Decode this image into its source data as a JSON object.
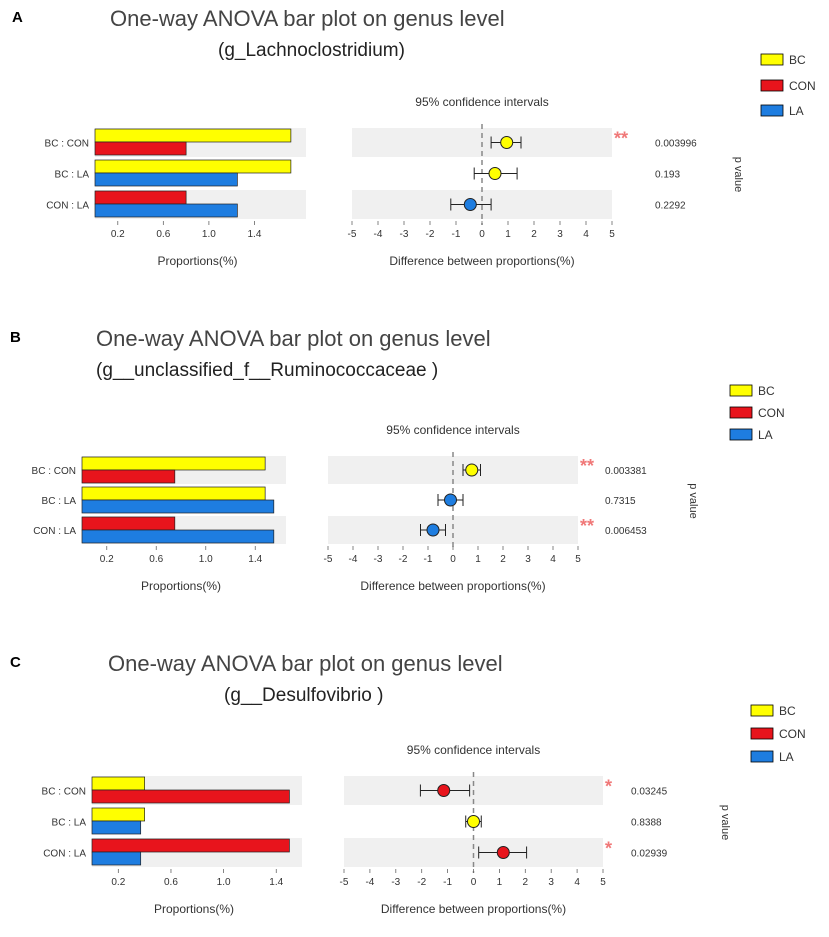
{
  "colors": {
    "BC": "#ffff00",
    "CON": "#e8141c",
    "LA": "#1e7de0",
    "stripe": "#f0f0f0",
    "sig": "#f07878"
  },
  "chart_data": [
    {
      "type": "bar",
      "panel": "A",
      "title": "One-way ANOVA bar plot on genus level",
      "subtitle": "(g_Lachnoclostridium)",
      "legend": [
        "BC",
        "CON",
        "LA"
      ],
      "rows": [
        "BC : CON",
        "BC : LA",
        "CON : LA"
      ],
      "row_groups": [
        [
          "BC",
          "CON"
        ],
        [
          "BC",
          "LA"
        ],
        [
          "CON",
          "LA"
        ]
      ],
      "proportions": {
        "BC": 1.72,
        "CON": 0.8,
        "LA": 1.25
      },
      "bar_xlim": [
        0,
        1.8
      ],
      "bar_ticks": [
        "0.2",
        "0.6",
        "1.0",
        "1.4"
      ],
      "bar_xlabel": "Proportions(%)",
      "ci_title": "95% confidence intervals",
      "ci_xlim": [
        -5,
        5
      ],
      "ci_ticks": [
        "-5",
        "-4",
        "-3",
        "-2",
        "-1",
        "0",
        "1",
        "2",
        "3",
        "4",
        "5"
      ],
      "ci_xlabel": "Difference between proportions(%)",
      "differences": [
        0.95,
        0.5,
        -0.45
      ],
      "ci_lower": [
        0.35,
        -0.3,
        -1.2
      ],
      "ci_upper": [
        1.5,
        1.35,
        0.35
      ],
      "dot_groups": [
        "BC",
        "BC",
        "LA"
      ],
      "p_values": [
        "0.003996",
        "0.193",
        "0.2292"
      ],
      "significance": [
        "**",
        "",
        ""
      ],
      "p_label": "p value"
    },
    {
      "type": "bar",
      "panel": "B",
      "title": "One-way ANOVA bar plot on genus level",
      "subtitle": "(g__unclassified_f__Ruminococcaceae )",
      "legend": [
        "BC",
        "CON",
        "LA"
      ],
      "rows": [
        "BC : CON",
        "BC : LA",
        "CON : LA"
      ],
      "row_groups": [
        [
          "BC",
          "CON"
        ],
        [
          "BC",
          "LA"
        ],
        [
          "CON",
          "LA"
        ]
      ],
      "proportions": {
        "BC": 1.48,
        "CON": 0.75,
        "LA": 1.55
      },
      "bar_xlim": [
        0,
        1.6
      ],
      "bar_ticks": [
        "0.2",
        "0.6",
        "1.0",
        "1.4"
      ],
      "bar_xlabel": "Proportions(%)",
      "ci_title": "95% confidence intervals",
      "ci_xlim": [
        -5,
        5
      ],
      "ci_ticks": [
        "-5",
        "-4",
        "-3",
        "-2",
        "-1",
        "0",
        "1",
        "2",
        "3",
        "4",
        "5"
      ],
      "ci_xlabel": "Difference between proportions(%)",
      "differences": [
        0.75,
        -0.1,
        -0.8
      ],
      "ci_lower": [
        0.4,
        -0.6,
        -1.3
      ],
      "ci_upper": [
        1.1,
        0.4,
        -0.3
      ],
      "dot_groups": [
        "BC",
        "LA",
        "LA"
      ],
      "p_values": [
        "0.003381",
        "0.7315",
        "0.006453"
      ],
      "significance": [
        "**",
        "",
        "**"
      ],
      "p_label": "p value"
    },
    {
      "type": "bar",
      "panel": "C",
      "title": "One-way ANOVA bar plot on genus level",
      "subtitle": "(g__Desulfovibrio  )",
      "legend": [
        "BC",
        "CON",
        "LA"
      ],
      "rows": [
        "BC : CON",
        "BC : LA",
        "CON : LA"
      ],
      "row_groups": [
        [
          "BC",
          "CON"
        ],
        [
          "BC",
          "LA"
        ],
        [
          "CON",
          "LA"
        ]
      ],
      "proportions": {
        "BC": 0.4,
        "CON": 1.5,
        "LA": 0.37
      },
      "bar_xlim": [
        0,
        1.55
      ],
      "bar_ticks": [
        "0.2",
        "0.6",
        "1.0",
        "1.4"
      ],
      "bar_xlabel": "Proportions(%)",
      "ci_title": "95% confidence intervals",
      "ci_xlim": [
        -5,
        5
      ],
      "ci_ticks": [
        "-5",
        "-4",
        "-3",
        "-2",
        "-1",
        "0",
        "1",
        "2",
        "3",
        "4",
        "5"
      ],
      "ci_xlabel": "Difference between proportions(%)",
      "differences": [
        -1.15,
        0.0,
        1.15
      ],
      "ci_lower": [
        -2.05,
        -0.3,
        0.2
      ],
      "ci_upper": [
        -0.15,
        0.3,
        2.05
      ],
      "dot_groups": [
        "CON",
        "BC",
        "CON"
      ],
      "p_values": [
        "0.03245",
        "0.8388",
        "0.02939"
      ],
      "significance": [
        "*",
        "",
        "*"
      ],
      "p_label": "p value"
    }
  ]
}
